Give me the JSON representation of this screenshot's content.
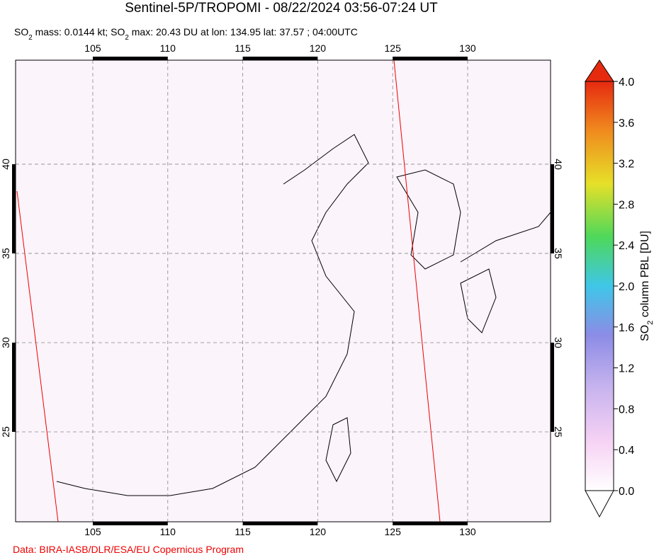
{
  "header": {
    "title": "Sentinel-5P/TROPOMI - 08/22/2024 03:56-07:24 UT",
    "subtitle": [
      "SO",
      "2",
      " mass: 0.0144 kt; SO",
      "2",
      " max: 20.43 DU at lon: 134.95 lat: 37.57 ; 04:00UTC"
    ]
  },
  "map": {
    "lonlim": [
      99.85,
      135.53
    ],
    "latlim": [
      19.96,
      45.83
    ],
    "lonticks": [
      105,
      110,
      115,
      120,
      125,
      130
    ],
    "latticks": [
      25,
      30,
      35,
      40
    ]
  },
  "colorbar": {
    "label": [
      "SO",
      "2",
      " column PBL [DU]"
    ],
    "lim": [
      0,
      4
    ],
    "ticks": [
      {
        "value": 0,
        "label": "0.0"
      },
      {
        "value": 0.4,
        "label": "0.4"
      },
      {
        "value": 0.8,
        "label": "0.8"
      },
      {
        "value": 1.2,
        "label": "1.2"
      },
      {
        "value": 1.6,
        "label": "1.6"
      },
      {
        "value": 2,
        "label": "2.0"
      },
      {
        "value": 2.4,
        "label": "2.4"
      },
      {
        "value": 2.8,
        "label": "2.8"
      },
      {
        "value": 3.2,
        "label": "3.2"
      },
      {
        "value": 3.6,
        "label": "3.6"
      },
      {
        "value": 4,
        "label": "4.0"
      }
    ]
  },
  "footer": {
    "credit": "Data: BIRA-IASB/DLR/ESA/EU Copernicus Program"
  }
}
